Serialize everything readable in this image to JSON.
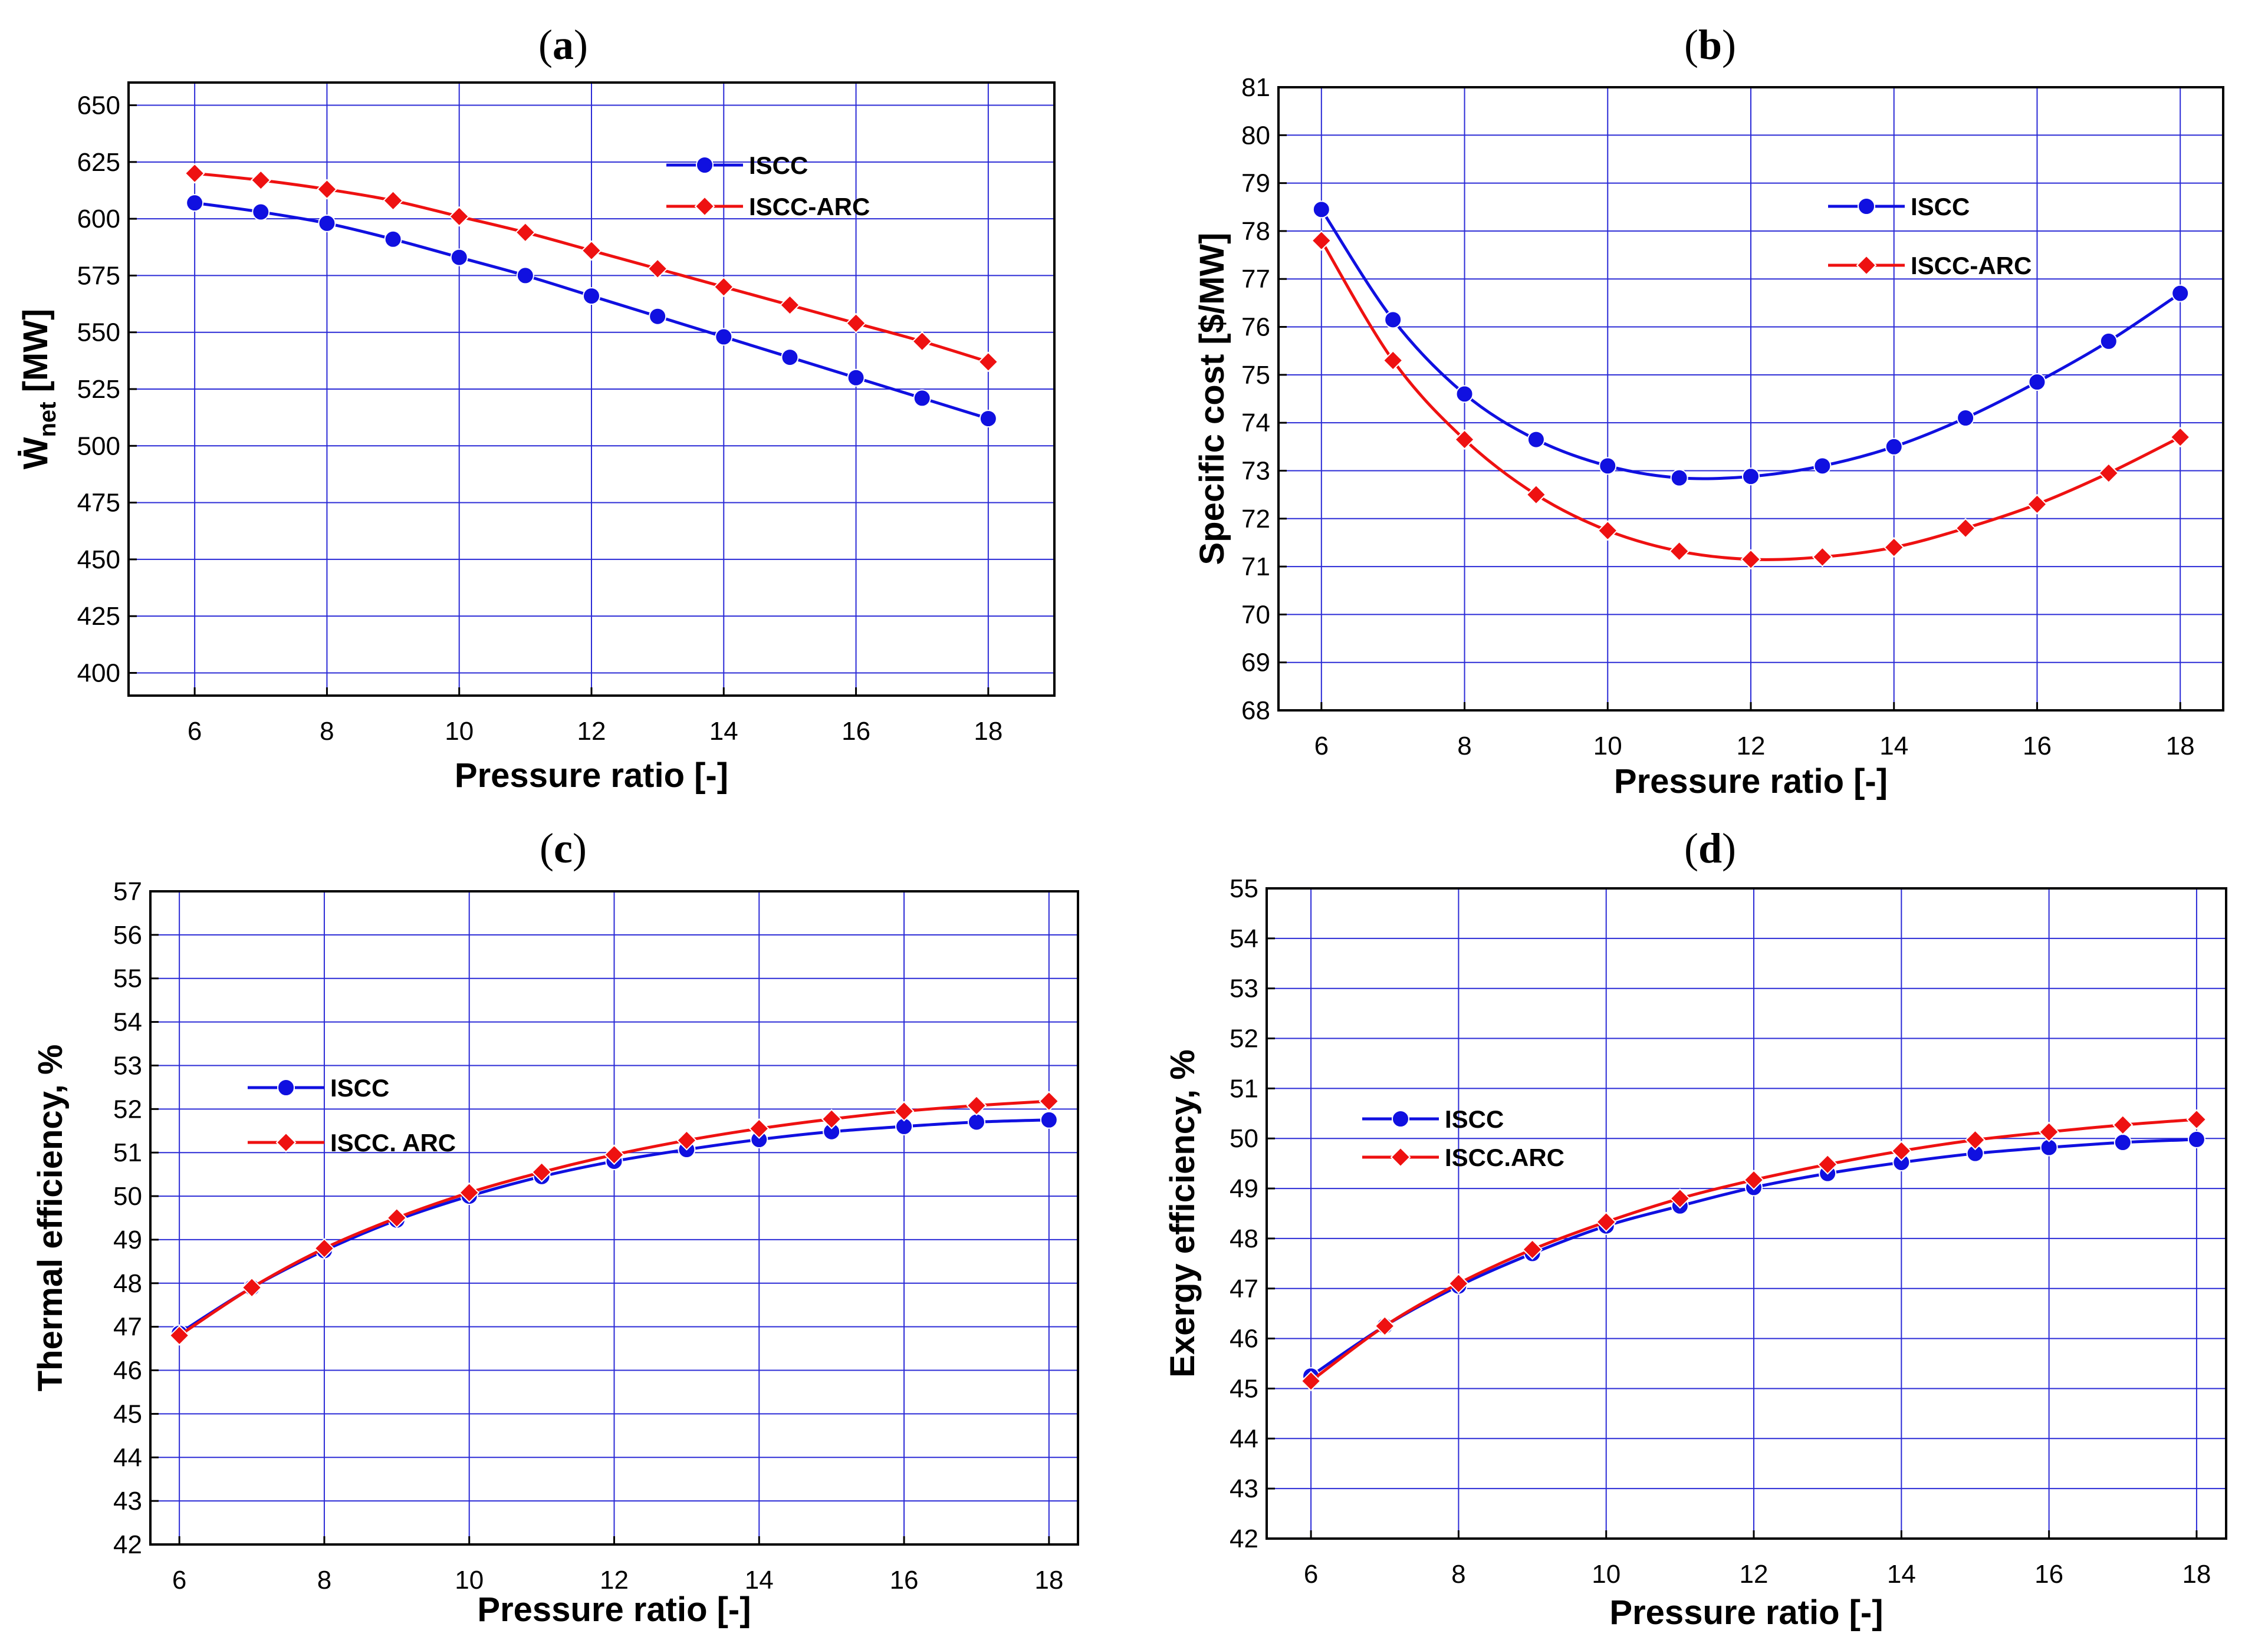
{
  "chart_data": [
    {
      "type": "line",
      "panel": "a",
      "xlabel": "Pressure ratio [-]",
      "ylabel_main": "Ẇ",
      "ylabel_sub": "net",
      "ylabel_unit": " [MW]",
      "xlim": [
        5,
        19
      ],
      "ylim": [
        390,
        660
      ],
      "xticks": [
        6,
        8,
        10,
        12,
        14,
        16,
        18
      ],
      "yticks": [
        400,
        425,
        450,
        475,
        500,
        525,
        550,
        575,
        600,
        625,
        650
      ],
      "legend": [
        "ISCC",
        "ISCC-ARC"
      ],
      "legend_position": "top-right",
      "x": [
        6,
        7,
        8,
        9,
        10,
        11,
        12,
        13,
        14,
        15,
        16,
        17,
        18
      ],
      "series": [
        {
          "name": "ISCC",
          "color": "#1010e0",
          "marker": "circle",
          "values": [
            607,
            603,
            598,
            591,
            583,
            575,
            566,
            557,
            548,
            539,
            530,
            521,
            512
          ]
        },
        {
          "name": "ISCC-ARC",
          "color": "#ee1111",
          "marker": "diamond",
          "values": [
            620,
            617,
            613,
            608,
            601,
            594,
            586,
            578,
            570,
            562,
            554,
            546,
            537
          ]
        }
      ]
    },
    {
      "type": "line",
      "panel": "b",
      "xlabel": "Pressure ratio [-]",
      "ylabel": "Specific cost [$/MW]",
      "xlim": [
        5.4,
        18.6
      ],
      "ylim": [
        68,
        81
      ],
      "xticks": [
        6,
        8,
        10,
        12,
        14,
        16,
        18
      ],
      "yticks": [
        68,
        69,
        70,
        71,
        72,
        73,
        74,
        75,
        76,
        77,
        78,
        79,
        80,
        81
      ],
      "legend": [
        "ISCC",
        "ISCC-ARC"
      ],
      "legend_position": "top-right",
      "x": [
        6,
        7,
        8,
        9,
        10,
        11,
        12,
        13,
        14,
        15,
        16,
        17,
        18
      ],
      "series": [
        {
          "name": "ISCC",
          "color": "#1010e0",
          "marker": "circle",
          "values": [
            78.45,
            76.15,
            74.6,
            73.65,
            73.1,
            72.85,
            72.88,
            73.1,
            73.5,
            74.1,
            74.85,
            75.7,
            76.7
          ]
        },
        {
          "name": "ISCC-ARC",
          "color": "#ee1111",
          "marker": "diamond",
          "values": [
            77.8,
            75.3,
            73.65,
            72.5,
            71.75,
            71.32,
            71.15,
            71.2,
            71.4,
            71.8,
            72.3,
            72.95,
            73.7
          ]
        }
      ]
    },
    {
      "type": "line",
      "panel": "c",
      "xlabel": "Pressure ratio [-]",
      "ylabel": "Thermal efficiency, %",
      "xlim": [
        5.6,
        18.4
      ],
      "ylim": [
        42,
        57
      ],
      "xticks": [
        6,
        8,
        10,
        12,
        14,
        16,
        18
      ],
      "yticks": [
        42,
        43,
        44,
        45,
        46,
        47,
        48,
        49,
        50,
        51,
        52,
        53,
        54,
        55,
        56,
        57
      ],
      "legend": [
        "ISCC",
        "ISCC. ARC"
      ],
      "legend_position": "center-left",
      "x": [
        6,
        7,
        8,
        9,
        10,
        11,
        12,
        13,
        14,
        15,
        16,
        17,
        18
      ],
      "series": [
        {
          "name": "ISCC",
          "color": "#1010e0",
          "marker": "circle",
          "values": [
            46.85,
            47.9,
            48.75,
            49.45,
            50.0,
            50.45,
            50.8,
            51.07,
            51.3,
            51.48,
            51.6,
            51.7,
            51.75
          ]
        },
        {
          "name": "ISCC. ARC",
          "color": "#ee1111",
          "marker": "diamond",
          "values": [
            46.8,
            47.9,
            48.8,
            49.5,
            50.08,
            50.55,
            50.95,
            51.28,
            51.55,
            51.77,
            51.95,
            52.08,
            52.18
          ]
        }
      ]
    },
    {
      "type": "line",
      "panel": "d",
      "xlabel": "Pressure ratio [-]",
      "ylabel": "Exergy efficiency, %",
      "xlim": [
        5.4,
        18.4
      ],
      "ylim": [
        42,
        55
      ],
      "xticks": [
        6,
        8,
        10,
        12,
        14,
        16,
        18
      ],
      "yticks": [
        42,
        43,
        44,
        45,
        46,
        47,
        48,
        49,
        50,
        51,
        52,
        53,
        54,
        55
      ],
      "legend": [
        "ISCC",
        "ISCC.ARC"
      ],
      "legend_position": "center-left",
      "x": [
        6,
        7,
        8,
        9,
        10,
        11,
        12,
        13,
        14,
        15,
        16,
        17,
        18
      ],
      "series": [
        {
          "name": "ISCC",
          "color": "#1010e0",
          "marker": "circle",
          "values": [
            45.25,
            46.25,
            47.05,
            47.7,
            48.25,
            48.65,
            49.02,
            49.3,
            49.52,
            49.7,
            49.82,
            49.92,
            49.98
          ]
        },
        {
          "name": "ISCC.ARC",
          "color": "#ee1111",
          "marker": "diamond",
          "values": [
            45.15,
            46.25,
            47.1,
            47.78,
            48.33,
            48.8,
            49.17,
            49.48,
            49.75,
            49.97,
            50.13,
            50.27,
            50.38
          ]
        }
      ]
    }
  ]
}
